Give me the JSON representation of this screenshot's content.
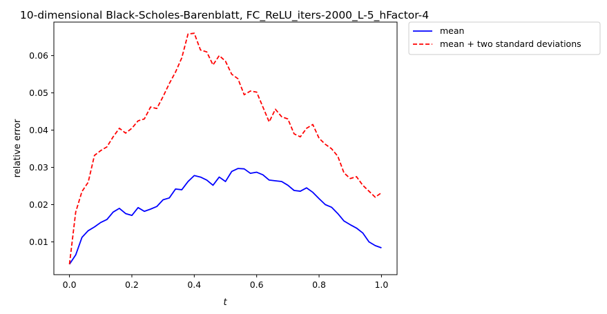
{
  "chart_data": {
    "type": "line",
    "title": "10-dimensional Black-Scholes-Barenblatt, FC_ReLU_iters-2000_L-5_hFactor-4",
    "xlabel": "t",
    "ylabel": "relative error",
    "xlim": [
      -0.05,
      1.05
    ],
    "ylim": [
      0.0012,
      0.069
    ],
    "xticks": [
      0.0,
      0.2,
      0.4,
      0.6,
      0.8,
      1.0
    ],
    "xtick_labels": [
      "0.0",
      "0.2",
      "0.4",
      "0.6",
      "0.8",
      "1.0"
    ],
    "yticks": [
      0.01,
      0.02,
      0.03,
      0.04,
      0.05,
      0.06
    ],
    "ytick_labels": [
      "0.01",
      "0.02",
      "0.03",
      "0.04",
      "0.05",
      "0.06"
    ],
    "grid": false,
    "legend_placement": "outside upper right",
    "x": [
      0.0,
      0.02,
      0.04,
      0.06,
      0.08,
      0.1,
      0.12,
      0.14,
      0.16,
      0.18,
      0.2,
      0.22,
      0.24,
      0.26,
      0.28,
      0.3,
      0.32,
      0.34,
      0.36,
      0.38,
      0.4,
      0.42,
      0.44,
      0.46,
      0.48,
      0.5,
      0.52,
      0.54,
      0.56,
      0.58,
      0.6,
      0.62,
      0.64,
      0.66,
      0.68,
      0.7,
      0.72,
      0.74,
      0.76,
      0.78,
      0.8,
      0.82,
      0.84,
      0.86,
      0.88,
      0.9,
      0.92,
      0.94,
      0.96,
      0.98,
      1.0
    ],
    "series": [
      {
        "name": "mean",
        "color": "#0000ff",
        "style": "solid",
        "values": [
          0.004,
          0.0065,
          0.0112,
          0.013,
          0.014,
          0.0152,
          0.016,
          0.018,
          0.019,
          0.0176,
          0.0171,
          0.0192,
          0.0182,
          0.0188,
          0.0195,
          0.0213,
          0.0218,
          0.0242,
          0.024,
          0.0262,
          0.0278,
          0.0274,
          0.0266,
          0.0252,
          0.0274,
          0.0262,
          0.0289,
          0.0297,
          0.0296,
          0.0284,
          0.0287,
          0.028,
          0.0266,
          0.0264,
          0.0262,
          0.0252,
          0.0238,
          0.0236,
          0.0245,
          0.0233,
          0.0216,
          0.02,
          0.0193,
          0.0176,
          0.0156,
          0.0146,
          0.0137,
          0.0124,
          0.01,
          0.009,
          0.0084
        ]
      },
      {
        "name": "mean + two standard deviations",
        "color": "#ff0000",
        "style": "dashed",
        "values": [
          0.004,
          0.018,
          0.0235,
          0.026,
          0.0332,
          0.0345,
          0.0355,
          0.0382,
          0.0405,
          0.0392,
          0.0405,
          0.0425,
          0.043,
          0.0462,
          0.0458,
          0.049,
          0.0525,
          0.0556,
          0.0594,
          0.0658,
          0.066,
          0.0615,
          0.061,
          0.0575,
          0.06,
          0.0585,
          0.055,
          0.0538,
          0.0495,
          0.0505,
          0.0502,
          0.0462,
          0.0422,
          0.0456,
          0.0436,
          0.043,
          0.039,
          0.0382,
          0.0405,
          0.0415,
          0.0378,
          0.0362,
          0.035,
          0.033,
          0.0285,
          0.027,
          0.0275,
          0.0252,
          0.0236,
          0.022,
          0.0232
        ]
      }
    ]
  }
}
